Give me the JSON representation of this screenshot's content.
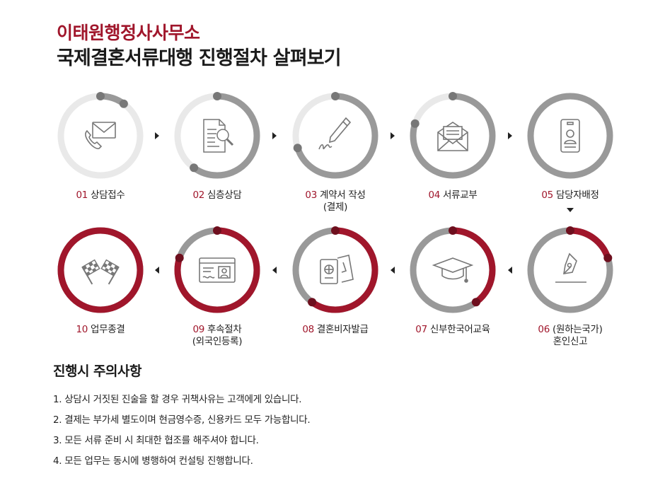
{
  "header": {
    "brand": "이태원행정사사무소",
    "headline": "국제결혼서류대행 진행절차 살펴보기"
  },
  "colors": {
    "accent": "#a0162b",
    "ring_gray": "#999999",
    "ring_light": "#e9e9e9"
  },
  "steps": [
    {
      "num": "01",
      "label": "상담접수",
      "sub": "",
      "icon": "phone-mail-icon",
      "progress": 0.1
    },
    {
      "num": "02",
      "label": "심층상담",
      "sub": "",
      "icon": "document-search-icon",
      "progress": 0.6
    },
    {
      "num": "03",
      "label": "계약서 작성",
      "sub": "(결제)",
      "icon": "pen-signature-icon",
      "progress": 0.7
    },
    {
      "num": "04",
      "label": "서류교부",
      "sub": "",
      "icon": "envelope-letter-icon",
      "progress": 0.8
    },
    {
      "num": "05",
      "label": "담당자배정",
      "sub": "",
      "icon": "id-badge-icon",
      "progress": 1.0
    },
    {
      "num": "06",
      "label": "(원하는국가)",
      "sub": "혼인신고",
      "icon": "fountain-pen-icon",
      "progress": 0.2
    },
    {
      "num": "07",
      "label": "신부한국어교육",
      "sub": "",
      "icon": "graduation-cap-icon",
      "progress": 0.4
    },
    {
      "num": "08",
      "label": "결혼비자발급",
      "sub": "",
      "icon": "passport-ticket-icon",
      "progress": 0.6
    },
    {
      "num": "09",
      "label": "후속절차",
      "sub": "(외국인등록)",
      "icon": "id-card-icon",
      "progress": 0.8
    },
    {
      "num": "10",
      "label": "업무종결",
      "sub": "",
      "icon": "checkered-flags-icon",
      "progress": 1.0
    }
  ],
  "notes": {
    "title": "진행시 주의사항",
    "items": [
      "1. 상담시 거짓된 진술을 할 경우 귀책사유는 고객에게 있습니다.",
      "2. 결제는 부가세 별도이며 현금영수증, 신용카드 모두 가능합니다.",
      "3. 모든 서류 준비 시 최대한 협조를 해주셔야 합니다.",
      "4. 모든 업무는 동시에 병행하여 컨설팅 진행합니다."
    ]
  }
}
